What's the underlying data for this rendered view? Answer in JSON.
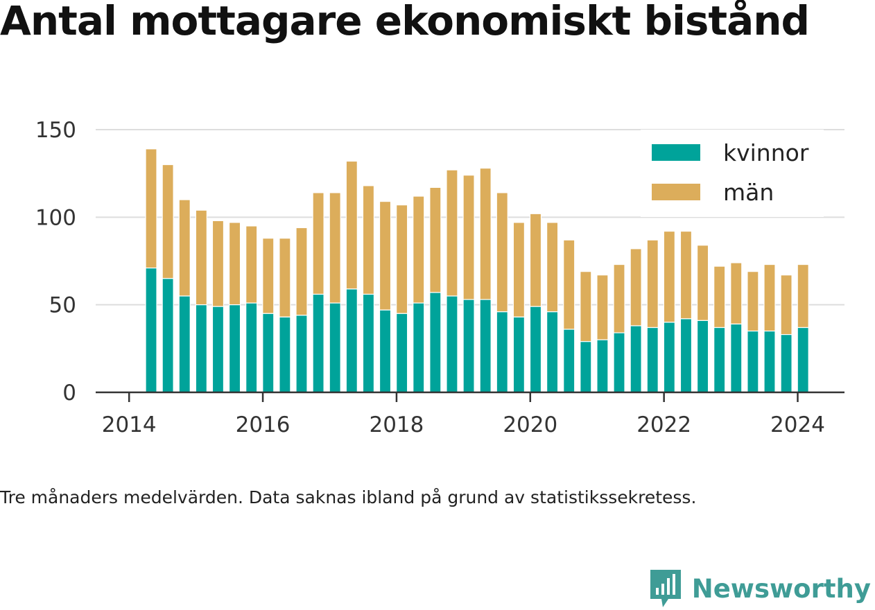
{
  "title": "Antal mottagare ekonomiskt bistånd",
  "note": "Tre månaders medelvärden. Data saknas ibland på grund av statistikssekretess.",
  "brand": {
    "name": "Newsworthy",
    "icon": "newsworthy-logo-icon",
    "color": "#3f9c96"
  },
  "chart_data": {
    "type": "bar",
    "stacked": true,
    "xlim": [
      2013.5,
      2024.7
    ],
    "ylim": [
      0,
      150
    ],
    "x_ticks": [
      "2014",
      "2016",
      "2018",
      "2020",
      "2022",
      "2024"
    ],
    "y_ticks": [
      "0",
      "50",
      "100",
      "150"
    ],
    "grid": true,
    "legend_position": "top-right",
    "x": [
      2014.33,
      2014.58,
      2014.83,
      2015.08,
      2015.33,
      2015.58,
      2015.83,
      2016.08,
      2016.33,
      2016.58,
      2016.83,
      2017.08,
      2017.33,
      2017.58,
      2017.83,
      2018.08,
      2018.33,
      2018.58,
      2018.83,
      2019.08,
      2019.33,
      2019.58,
      2019.83,
      2020.08,
      2020.33,
      2020.58,
      2020.83,
      2021.08,
      2021.33,
      2021.58,
      2021.83,
      2022.08,
      2022.33,
      2022.58,
      2022.83,
      2023.08,
      2023.33,
      2023.58,
      2023.83,
      2024.08
    ],
    "series": [
      {
        "name": "kvinnor",
        "color": "#00a39a",
        "values": [
          71,
          65,
          55,
          50,
          49,
          50,
          51,
          45,
          43,
          44,
          56,
          51,
          59,
          56,
          47,
          45,
          51,
          57,
          55,
          53,
          53,
          46,
          43,
          49,
          46,
          36,
          29,
          30,
          34,
          38,
          37,
          40,
          42,
          41,
          37,
          39,
          35,
          35,
          33,
          37
        ]
      },
      {
        "name": "män",
        "color": "#dcad5b",
        "values": [
          68,
          65,
          55,
          54,
          49,
          47,
          44,
          43,
          45,
          50,
          58,
          63,
          73,
          62,
          62,
          62,
          61,
          60,
          72,
          71,
          75,
          68,
          54,
          53,
          51,
          51,
          40,
          37,
          39,
          44,
          50,
          52,
          50,
          43,
          35,
          35,
          34,
          38,
          34,
          36
        ]
      }
    ]
  }
}
